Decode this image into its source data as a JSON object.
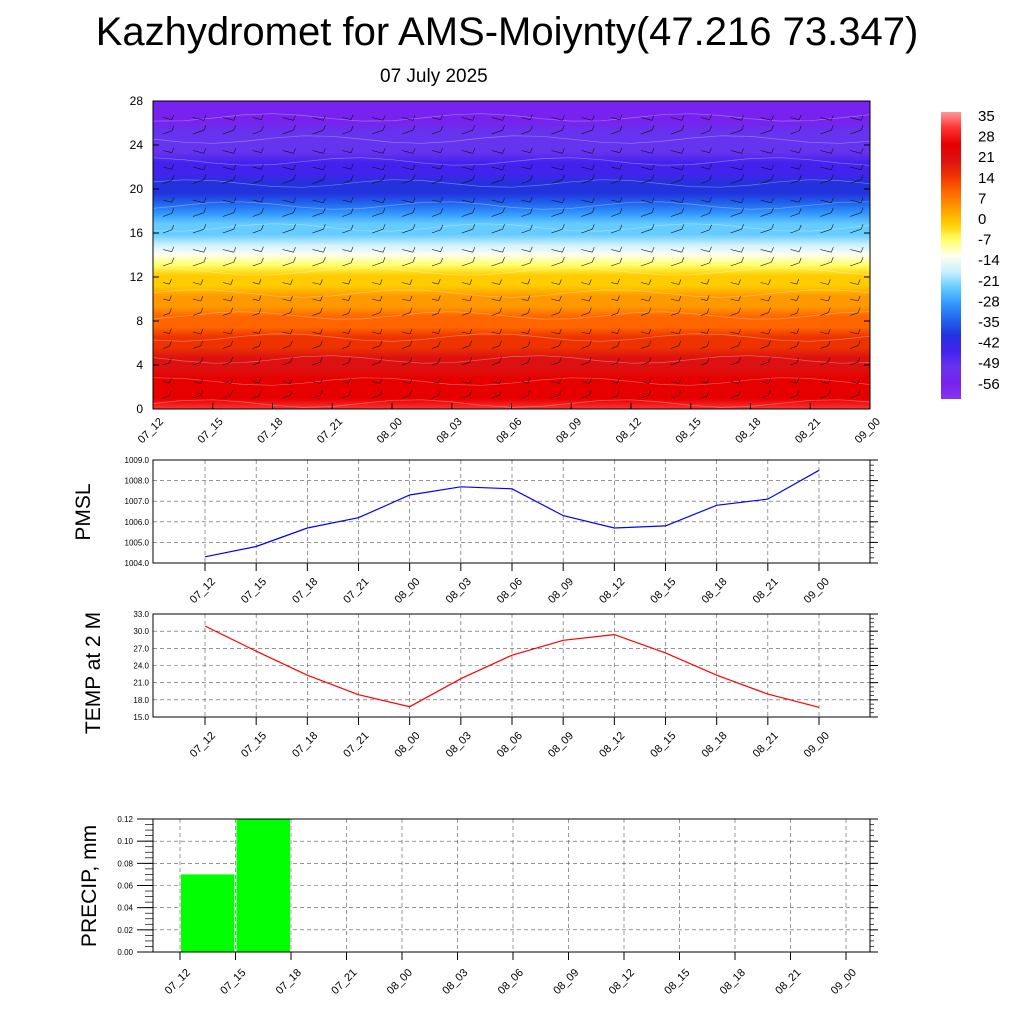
{
  "title": "Kazhydromet for AMS-Moiynty(47.216 73.347)",
  "subtitle": "07 July 2025",
  "colors": {
    "pmsl_line": "#0000ff",
    "temp_line": "#ff0000",
    "precip_bar": "#00ff00",
    "colorbar_scale": [
      "#ff9999",
      "#ff3333",
      "#e60000",
      "#dd1111",
      "#ee3300",
      "#ff6600",
      "#ff9900",
      "#ffcc00",
      "#ffff66",
      "#ffffee",
      "#ccf0ff",
      "#66ccff",
      "#3399ff",
      "#2266ee",
      "#2233dd",
      "#4422ee",
      "#6633ee",
      "#7722ee",
      "#8833ee"
    ]
  },
  "chart_data": [
    {
      "type": "heatmap",
      "title": "",
      "xlabel": "",
      "ylabel": "",
      "x_ticks": [
        "07_12",
        "07_15",
        "07_18",
        "07_21",
        "08_00",
        "08_03",
        "08_06",
        "08_09",
        "08_12",
        "08_15",
        "08_18",
        "08_21",
        "09_00"
      ],
      "y_ticks": [
        "0",
        "4",
        "8",
        "12",
        "16",
        "20",
        "24",
        "28"
      ],
      "ylim": [
        0,
        28
      ],
      "colorbar": {
        "labels": [
          "35",
          "28",
          "21",
          "14",
          "7",
          "0",
          "-7",
          "-14",
          "-21",
          "-28",
          "-35",
          "-42",
          "-49",
          "-56"
        ],
        "range": [
          -60,
          38
        ]
      },
      "levels": [
        0,
        4,
        8,
        12,
        16,
        20,
        24,
        28
      ],
      "level_temperatures": [
        31,
        22,
        12,
        0,
        -20,
        -38,
        -50,
        -56
      ],
      "overlay": "wind barbs"
    },
    {
      "type": "line",
      "title": "",
      "xlabel": "",
      "ylabel": "PMSL",
      "x": [
        "07_12",
        "07_15",
        "07_18",
        "07_21",
        "08_00",
        "08_03",
        "08_06",
        "08_09",
        "08_12",
        "08_15",
        "08_18",
        "08_21",
        "09_00"
      ],
      "series": [
        {
          "values": [
            1004.3,
            1004.8,
            1005.7,
            1006.2,
            1007.3,
            1007.7,
            1007.6,
            1006.3,
            1005.7,
            1005.8,
            1006.8,
            1007.1,
            1008.5
          ]
        }
      ],
      "y_ticks": [
        "1004.0",
        "1005.0",
        "1006.0",
        "1007.0",
        "1008.0",
        "1009.0"
      ],
      "ylim": [
        1004,
        1009
      ],
      "grid": true
    },
    {
      "type": "line",
      "title": "",
      "xlabel": "",
      "ylabel": "TEMP at 2 M",
      "x": [
        "07_12",
        "07_15",
        "07_18",
        "07_21",
        "08_00",
        "08_03",
        "08_06",
        "08_09",
        "08_12",
        "08_15",
        "08_18",
        "08_21",
        "09_00"
      ],
      "series": [
        {
          "values": [
            30.9,
            26.5,
            22.3,
            18.9,
            16.8,
            21.7,
            25.8,
            28.4,
            29.4,
            26.2,
            22.3,
            19.0,
            16.7
          ]
        }
      ],
      "y_ticks": [
        "15.0",
        "18.0",
        "21.0",
        "24.0",
        "27.0",
        "30.0",
        "33.0"
      ],
      "ylim": [
        15,
        33
      ],
      "grid": true
    },
    {
      "type": "bar",
      "title": "",
      "xlabel": "",
      "ylabel": "PRECIP, mm",
      "categories": [
        "07_12",
        "07_15",
        "07_18",
        "07_21",
        "08_00",
        "08_03",
        "08_06",
        "08_09",
        "08_12",
        "08_15",
        "08_18",
        "08_21",
        "09_00"
      ],
      "values": [
        0,
        0.07,
        0.12,
        0,
        0,
        0,
        0,
        0,
        0,
        0,
        0,
        0,
        0
      ],
      "y_ticks": [
        "0.00",
        "0.02",
        "0.04",
        "0.06",
        "0.08",
        "0.10",
        "0.12"
      ],
      "ylim": [
        0,
        0.12
      ],
      "grid": true
    }
  ]
}
